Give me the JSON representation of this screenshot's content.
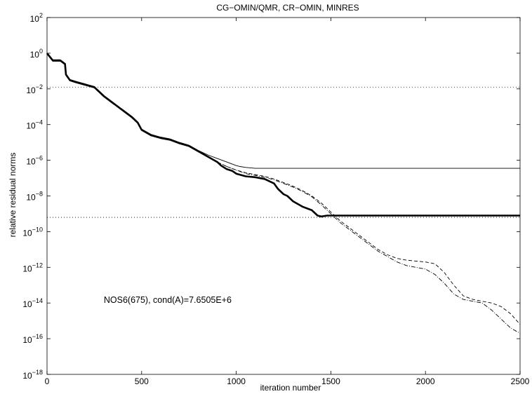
{
  "chart_data": {
    "type": "line",
    "title": "CG−OMIN/QMR, CR−OMIN, MINRES",
    "xlabel": "iteration number",
    "ylabel": "relative residual norms",
    "xlim": [
      0,
      2500
    ],
    "ylim_log10": [
      -18,
      2
    ],
    "yscale": "log",
    "grid": false,
    "legend": "none",
    "x_ticks": [
      {
        "value": 0,
        "label": "0"
      },
      {
        "value": 500,
        "label": "500"
      },
      {
        "value": 1000,
        "label": "1000"
      },
      {
        "value": 1500,
        "label": "1500"
      },
      {
        "value": 2000,
        "label": "2000"
      },
      {
        "value": 2500,
        "label": "2500"
      }
    ],
    "y_ticks": [
      {
        "exp": 2,
        "base": "10",
        "sup": "2"
      },
      {
        "exp": 0,
        "base": "10",
        "sup": "0"
      },
      {
        "exp": -2,
        "base": "10",
        "sup": "−2"
      },
      {
        "exp": -4,
        "base": "10",
        "sup": "−4"
      },
      {
        "exp": -6,
        "base": "10",
        "sup": "−6"
      },
      {
        "exp": -8,
        "base": "10",
        "sup": "−8"
      },
      {
        "exp": -10,
        "base": "10",
        "sup": "−10"
      },
      {
        "exp": -12,
        "base": "10",
        "sup": "−12"
      },
      {
        "exp": -14,
        "base": "10",
        "sup": "−14"
      },
      {
        "exp": -16,
        "base": "10",
        "sup": "−16"
      },
      {
        "exp": -18,
        "base": "10",
        "sup": "−18"
      }
    ],
    "annotation": "NOS6(675), cond(A)=7.6505E+6",
    "annotation_at": {
      "x": 300,
      "y_log10": -14
    },
    "reference_lines": [
      {
        "style": "dotted",
        "y_log10": -1.9
      },
      {
        "style": "dotted",
        "y_log10": -9.2
      }
    ],
    "series": [
      {
        "style": "thick-solid",
        "x": [
          0,
          30,
          70,
          95,
          100,
          120,
          150,
          200,
          250,
          300,
          350,
          400,
          450,
          480,
          500,
          550,
          600,
          650,
          700,
          750,
          800,
          850,
          900,
          920,
          950,
          980,
          1000,
          1050,
          1100,
          1150,
          1200,
          1220,
          1250,
          1270,
          1300,
          1350,
          1400,
          1430,
          1450,
          1480,
          1500,
          1550,
          1600,
          2000,
          2500
        ],
        "y_log10": [
          0,
          -0.4,
          -0.4,
          -0.6,
          -1.2,
          -1.5,
          -1.6,
          -1.75,
          -1.9,
          -2.4,
          -2.8,
          -3.2,
          -3.6,
          -3.9,
          -4.3,
          -4.6,
          -4.75,
          -4.85,
          -5.05,
          -5.2,
          -5.5,
          -5.8,
          -6.1,
          -6.3,
          -6.5,
          -6.6,
          -6.75,
          -6.9,
          -6.95,
          -7.05,
          -7.3,
          -7.6,
          -7.9,
          -8.0,
          -8.3,
          -8.6,
          -8.8,
          -9.1,
          -9.15,
          -9.1,
          -9.1,
          -9.1,
          -9.1,
          -9.1,
          -9.1
        ]
      },
      {
        "style": "thin-solid",
        "x": [
          0,
          30,
          70,
          95,
          100,
          120,
          150,
          200,
          250,
          300,
          350,
          400,
          450,
          480,
          500,
          550,
          600,
          650,
          700,
          750,
          800,
          850,
          900,
          950,
          1000,
          1020,
          1050,
          1100,
          1500,
          2000,
          2500
        ],
        "y_log10": [
          -0.05,
          -0.45,
          -0.45,
          -0.65,
          -1.25,
          -1.55,
          -1.65,
          -1.8,
          -1.95,
          -2.45,
          -2.85,
          -3.15,
          -3.55,
          -3.85,
          -4.25,
          -4.55,
          -4.7,
          -4.8,
          -5.0,
          -5.15,
          -5.45,
          -5.7,
          -5.9,
          -6.1,
          -6.3,
          -6.35,
          -6.4,
          -6.45,
          -6.45,
          -6.45,
          -6.45
        ]
      },
      {
        "style": "dashed",
        "x": [
          900,
          950,
          1000,
          1050,
          1100,
          1150,
          1200,
          1250,
          1300,
          1350,
          1400,
          1450,
          1500,
          1550,
          1600,
          1650,
          1700,
          1750,
          1800,
          1850,
          1900,
          1950,
          2000,
          2050,
          2100,
          2150,
          2200,
          2250,
          2300,
          2350,
          2400,
          2450,
          2500
        ],
        "y_log10": [
          -6.1,
          -6.35,
          -6.55,
          -6.7,
          -6.8,
          -6.9,
          -7.05,
          -7.25,
          -7.45,
          -7.7,
          -8.0,
          -8.4,
          -8.9,
          -9.4,
          -9.8,
          -10.2,
          -10.6,
          -11.0,
          -11.3,
          -11.5,
          -11.6,
          -11.65,
          -11.7,
          -11.8,
          -12.3,
          -13.0,
          -13.6,
          -13.8,
          -13.9,
          -14.0,
          -14.2,
          -14.6,
          -15.2
        ]
      },
      {
        "style": "dash-dot",
        "x": [
          900,
          950,
          1000,
          1050,
          1100,
          1150,
          1200,
          1250,
          1300,
          1350,
          1400,
          1450,
          1500,
          1550,
          1600,
          1650,
          1700,
          1750,
          1800,
          1850,
          1900,
          1950,
          2000,
          2050,
          2100,
          2150,
          2200,
          2250,
          2300,
          2350,
          2400,
          2450,
          2500
        ],
        "y_log10": [
          -6.1,
          -6.35,
          -6.55,
          -6.75,
          -6.85,
          -6.95,
          -7.1,
          -7.3,
          -7.5,
          -7.75,
          -8.05,
          -8.5,
          -9.0,
          -9.5,
          -9.9,
          -10.3,
          -10.7,
          -11.1,
          -11.4,
          -11.7,
          -11.9,
          -12.0,
          -12.1,
          -12.4,
          -12.9,
          -13.5,
          -13.8,
          -13.9,
          -14.0,
          -14.4,
          -14.9,
          -15.4,
          -15.7
        ]
      }
    ]
  }
}
